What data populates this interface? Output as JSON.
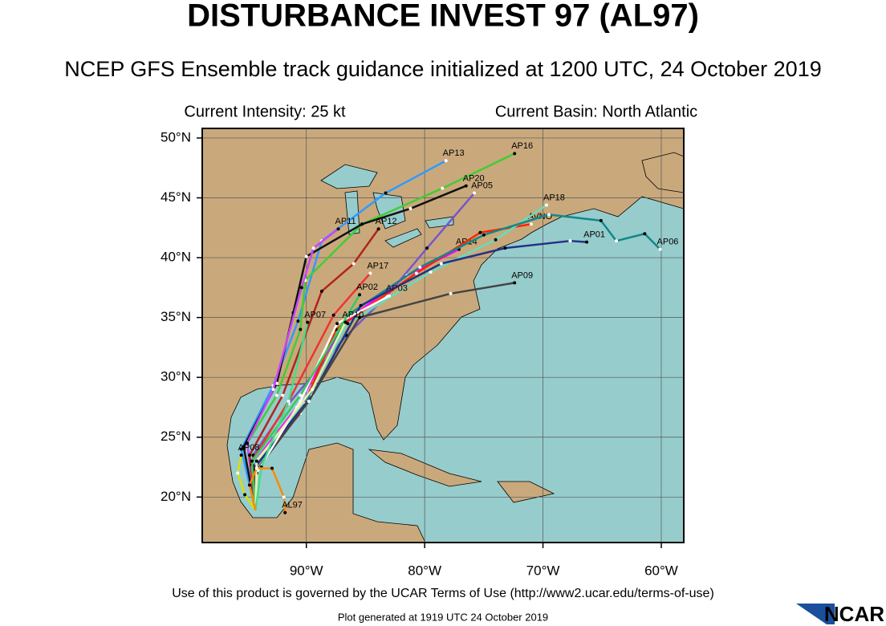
{
  "header": {
    "title": "DISTURBANCE INVEST 97 (AL97)",
    "subtitle": "NCEP GFS Ensemble track guidance initialized at 1200 UTC, 24 October 2019",
    "intensity": "Current Intensity: 25 kt",
    "basin": "Current Basin: North Atlantic"
  },
  "map": {
    "lon_range": [
      -98.8,
      -58.1
    ],
    "lat_range": [
      16.2,
      50.8
    ],
    "lon_ticks": [
      {
        "value": -90,
        "label": "90°W"
      },
      {
        "value": -80,
        "label": "80°W"
      },
      {
        "value": -70,
        "label": "70°W"
      },
      {
        "value": -60,
        "label": "60°W"
      }
    ],
    "lat_ticks": [
      {
        "value": 20,
        "label": "20°N"
      },
      {
        "value": 25,
        "label": "25°N"
      },
      {
        "value": 30,
        "label": "30°N"
      },
      {
        "value": 35,
        "label": "35°N"
      },
      {
        "value": 40,
        "label": "40°N"
      },
      {
        "value": 45,
        "label": "45°N"
      },
      {
        "value": 50,
        "label": "50°N"
      }
    ]
  },
  "tracks": [
    {
      "name": "AP13",
      "color": "#3399ff",
      "lon": [
        -94.3,
        -95.5,
        -92.8,
        -90.7,
        -88.7,
        -83.3,
        -78.2
      ],
      "lat": [
        18.9,
        24.0,
        29.3,
        34.7,
        41.4,
        45.4,
        48.1
      ]
    },
    {
      "name": "AP16",
      "color": "#44cc33",
      "lon": [
        -94.3,
        -95.0,
        -92.5,
        -90.5,
        -90.1,
        -85.3,
        -78.5,
        -72.4
      ],
      "lat": [
        18.9,
        24.5,
        28.5,
        34.0,
        38.1,
        42.8,
        45.8,
        48.7
      ]
    },
    {
      "name": "AP20",
      "color": "#111111",
      "lon": [
        -94.3,
        -95.3,
        -92.5,
        -91.1,
        -90.0,
        -85.3,
        -81.2,
        -76.5
      ],
      "lat": [
        18.9,
        24.2,
        29.5,
        35.4,
        40.1,
        42.8,
        44.1,
        46.0
      ]
    },
    {
      "name": "AP05",
      "color": "#7755cc",
      "lon": [
        -94.3,
        -94.5,
        -91.5,
        -86.6,
        -83.2,
        -79.8,
        -75.8
      ],
      "lat": [
        18.9,
        23.5,
        27.8,
        33.5,
        36.8,
        40.8,
        45.4
      ]
    },
    {
      "name": "AP11",
      "color": "#cc44ff",
      "lon": [
        -94.3,
        -95.0,
        -92.8,
        -90.4,
        -89.4,
        -87.3
      ],
      "lat": [
        18.9,
        24.5,
        29.0,
        37.5,
        40.8,
        42.4
      ]
    },
    {
      "name": "AP12",
      "color": "#b22222",
      "lon": [
        -94.3,
        -94.8,
        -92.0,
        -88.7,
        -86.0,
        -83.9
      ],
      "lat": [
        18.9,
        23.5,
        28.5,
        37.2,
        39.5,
        42.4
      ]
    },
    {
      "name": "AP17",
      "color": "#ee3333",
      "lon": [
        -94.3,
        -94.6,
        -91.5,
        -87.7,
        -84.6
      ],
      "lat": [
        18.9,
        23.0,
        28.0,
        35.2,
        38.7
      ]
    },
    {
      "name": "AP14",
      "color": "#ff00ff",
      "lon": [
        -94.3,
        -94.5,
        -90.8,
        -86.9,
        -81.5,
        -77.1
      ],
      "lat": [
        18.9,
        22.8,
        27.5,
        34.5,
        38.5,
        40.7
      ]
    },
    {
      "name": "AVNO",
      "color": "#ff2200",
      "lon": [
        -94.3,
        -94.4,
        -90.5,
        -87.5,
        -80.7,
        -75.3,
        -71.0
      ],
      "lat": [
        18.9,
        22.5,
        27.0,
        34.0,
        38.7,
        42.1,
        42.8
      ]
    },
    {
      "name": "AP18",
      "color": "#66ddbb",
      "lon": [
        -94.3,
        -94.6,
        -90.3,
        -86.5,
        -79.5,
        -74.0,
        -69.7
      ],
      "lat": [
        18.9,
        22.7,
        27.5,
        34.5,
        38.8,
        41.5,
        44.4
      ]
    },
    {
      "name": "AP06",
      "color": "#118888",
      "lon": [
        -94.3,
        -94.4,
        -90.1,
        -86.5,
        -80.4,
        -75.0,
        -69.5,
        -65.1,
        -63.8,
        -61.4,
        -60.1
      ],
      "lat": [
        18.9,
        22.4,
        27.8,
        35.2,
        39.2,
        41.9,
        43.6,
        43.1,
        41.4,
        42.0,
        40.7
      ]
    },
    {
      "name": "AP01",
      "color": "#223388",
      "lon": [
        -94.3,
        -94.5,
        -89.5,
        -85.4,
        -78.6,
        -73.2,
        -67.7,
        -66.3
      ],
      "lat": [
        18.9,
        22.3,
        28.5,
        36.0,
        39.5,
        40.8,
        41.4,
        41.3
      ]
    },
    {
      "name": "AP09",
      "color": "#444444",
      "lon": [
        -94.3,
        -94.4,
        -89.8,
        -85.5,
        -77.8,
        -72.4
      ],
      "lat": [
        18.9,
        22.0,
        28.0,
        35.0,
        37.0,
        37.9
      ]
    },
    {
      "name": "AP03",
      "color": "#ffffff",
      "lon": [
        -94.3,
        -94.2,
        -90.5,
        -87.4,
        -83.0
      ],
      "lat": [
        18.9,
        22.0,
        28.0,
        34.5,
        36.8
      ]
    },
    {
      "name": "AP02",
      "color": "#33cc55",
      "lon": [
        -94.3,
        -94.6,
        -90.5,
        -85.5
      ],
      "lat": [
        18.9,
        23.0,
        28.5,
        36.9
      ]
    },
    {
      "name": "AP10",
      "color": "#eeeeaa",
      "lon": [
        -94.3,
        -94.2,
        -89.5,
        -86.7
      ],
      "lat": [
        18.9,
        23.0,
        29.0,
        34.6
      ]
    },
    {
      "name": "AP07",
      "color": "#44dd88",
      "lon": [
        -94.3,
        -93.8,
        -91.5,
        -89.9
      ],
      "lat": [
        18.9,
        22.5,
        28.0,
        34.6
      ]
    },
    {
      "name": "AP08",
      "color": "#dddd00",
      "lon": [
        -94.3,
        -95.2,
        -95.8,
        -95.5
      ],
      "lat": [
        18.9,
        20.2,
        22.0,
        23.5
      ]
    },
    {
      "name": "AL97",
      "color": "#ff8800",
      "lon": [
        -94.3,
        -94.8,
        -94.2,
        -92.9,
        -91.9,
        -91.8
      ],
      "lat": [
        18.9,
        21.0,
        22.4,
        22.4,
        20.0,
        18.7
      ]
    }
  ],
  "footer": {
    "terms": "Use of this product is governed by the UCAR Terms of Use (http://www2.ucar.edu/terms-of-use)",
    "generated": "Plot generated at 1919 UTC   24 October 2019",
    "logo": "NCAR"
  }
}
